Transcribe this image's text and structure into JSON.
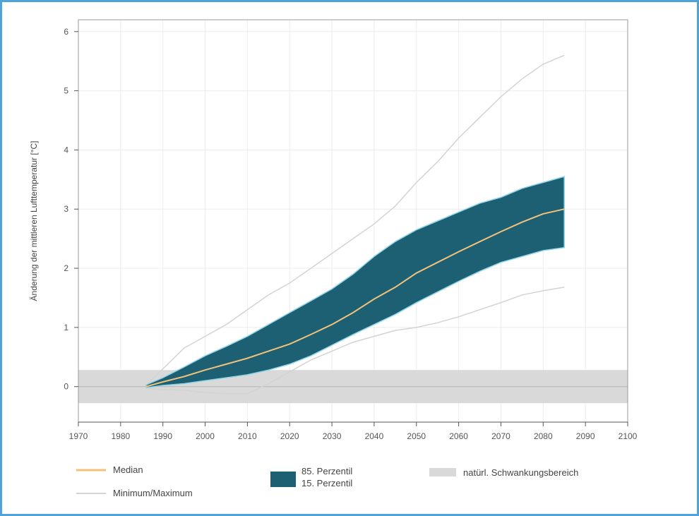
{
  "chart_data": {
    "type": "area",
    "xlabel": "",
    "ylabel": "Änderung der mittleren Lufttemperatur [°C]",
    "xlim": [
      1970,
      2100
    ],
    "ylim": [
      -0.6,
      6.2
    ],
    "x_ticks": [
      1970,
      1980,
      1990,
      2000,
      2010,
      2020,
      2030,
      2040,
      2050,
      2060,
      2070,
      2080,
      2090,
      2100
    ],
    "y_ticks": [
      0,
      1,
      2,
      3,
      4,
      5,
      6
    ],
    "grid": true,
    "natural_variability_band": {
      "low": -0.28,
      "high": 0.28,
      "name": "natürl. Schwankungsbereich"
    },
    "x": [
      1986,
      1990,
      1995,
      2000,
      2005,
      2010,
      2015,
      2020,
      2025,
      2030,
      2035,
      2040,
      2045,
      2050,
      2055,
      2060,
      2065,
      2070,
      2075,
      2080,
      2085
    ],
    "series": [
      {
        "name": "Median",
        "values": [
          0.0,
          0.08,
          0.17,
          0.28,
          0.38,
          0.48,
          0.6,
          0.72,
          0.88,
          1.05,
          1.25,
          1.48,
          1.68,
          1.92,
          2.1,
          2.28,
          2.45,
          2.62,
          2.78,
          2.92,
          3.0
        ]
      },
      {
        "name": "85. Perzentil",
        "values": [
          0.03,
          0.15,
          0.33,
          0.52,
          0.68,
          0.85,
          1.05,
          1.25,
          1.45,
          1.65,
          1.9,
          2.2,
          2.45,
          2.65,
          2.8,
          2.95,
          3.1,
          3.2,
          3.35,
          3.45,
          3.55
        ]
      },
      {
        "name": "15. Perzentil",
        "values": [
          -0.02,
          0.02,
          0.05,
          0.1,
          0.15,
          0.2,
          0.28,
          0.38,
          0.52,
          0.7,
          0.88,
          1.05,
          1.22,
          1.42,
          1.6,
          1.78,
          1.95,
          2.1,
          2.2,
          2.3,
          2.35
        ]
      },
      {
        "name": "Maximum",
        "values": [
          0.03,
          0.3,
          0.65,
          0.85,
          1.05,
          1.3,
          1.55,
          1.75,
          2.0,
          2.25,
          2.5,
          2.75,
          3.05,
          3.45,
          3.8,
          4.2,
          4.55,
          4.9,
          5.2,
          5.45,
          5.6
        ]
      },
      {
        "name": "Minimum",
        "values": [
          -0.03,
          -0.05,
          -0.06,
          -0.1,
          -0.12,
          -0.12,
          0.05,
          0.25,
          0.45,
          0.6,
          0.75,
          0.85,
          0.95,
          1.0,
          1.08,
          1.18,
          1.3,
          1.42,
          1.55,
          1.62,
          1.68
        ]
      }
    ],
    "colors": {
      "median": "#f2c27a",
      "band": "#1d5f73",
      "band_edge": "#8fd4e8",
      "minmax": "#d3d3d3",
      "natural_band": "#d9d9d9"
    }
  },
  "legend": {
    "median": "Median",
    "minmax": "Minimum/Maximum",
    "p85": "85. Perzentil",
    "p15": "15. Perzentil",
    "natural": "natürl. Schwankungsbereich"
  }
}
